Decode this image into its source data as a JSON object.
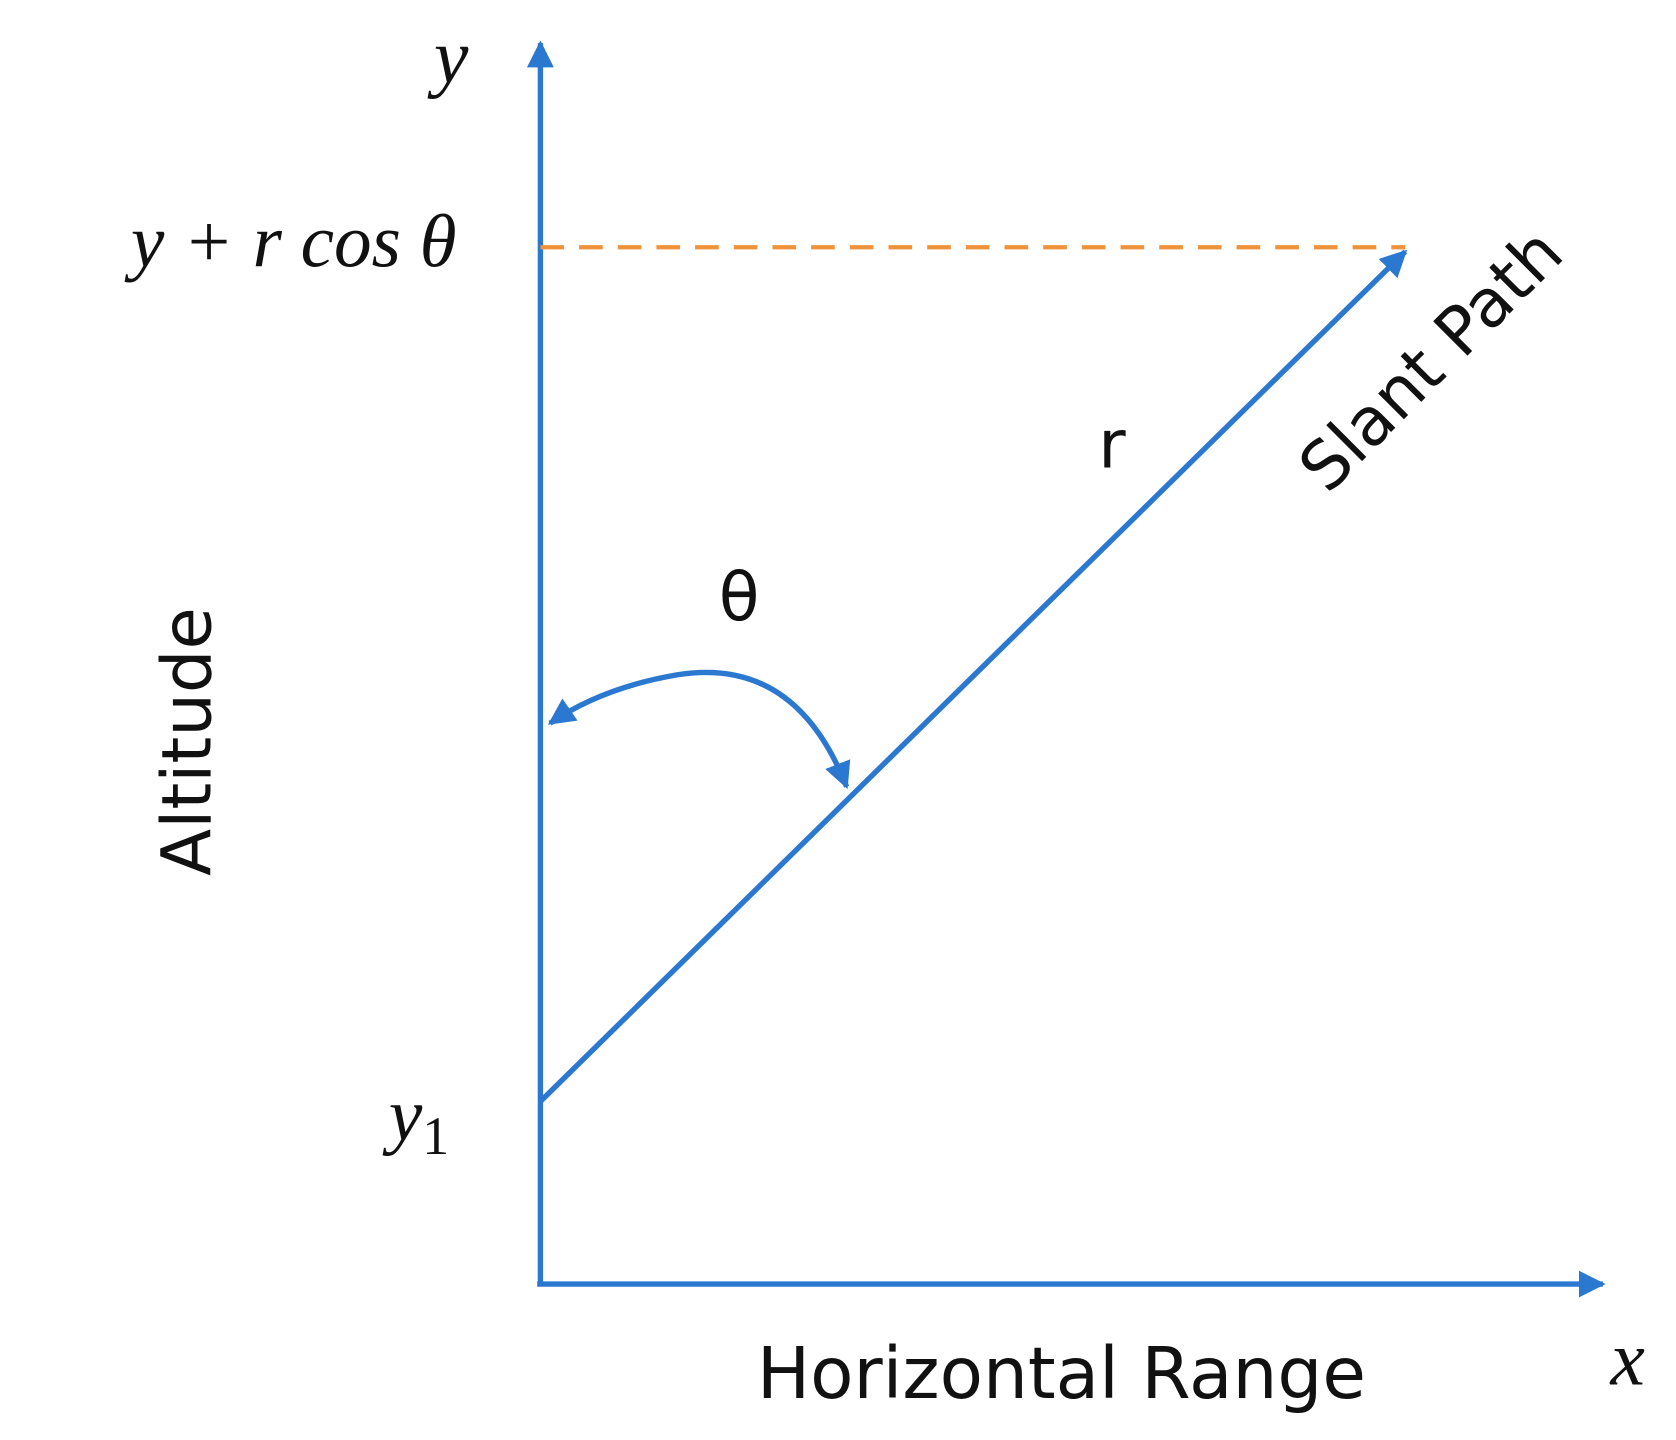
{
  "axes": {
    "y_label": "y",
    "y_level_label": "y + r cos θ",
    "y1_label": {
      "base": "y",
      "subscript": "1"
    },
    "x_label": "x",
    "vertical_title": "Altitude",
    "horizontal_title": "Horizontal Range"
  },
  "path": {
    "name": "Slant Path",
    "length_label": "r",
    "angle_label": "θ"
  }
}
